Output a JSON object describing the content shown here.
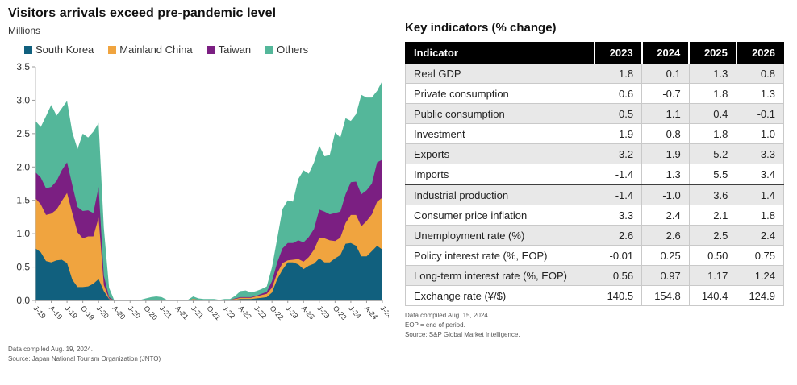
{
  "left_panel": {
    "title": "Visitors arrivals exceed pre-pandemic level",
    "subtitle": "Millions",
    "footnotes": [
      "Data compiled Aug. 19, 2024.",
      "Source: Japan National Tourism Organization (JNTO)"
    ]
  },
  "chart_data": {
    "type": "area",
    "stacked": true,
    "title": "Visitors arrivals exceed pre-pandemic level",
    "ylabel": "Millions",
    "x_start": "Jan-2019",
    "x_end": "Jul-2024",
    "x_frequency": "monthly",
    "tick_every": 3,
    "x_tick_labels": [
      "J-19",
      "A-19",
      "J-19",
      "O-19",
      "J-20",
      "A-20",
      "J-20",
      "O-20",
      "J-21",
      "A-21",
      "J-21",
      "O-21",
      "J-22",
      "A-22",
      "J-22",
      "O-22",
      "J-23",
      "A-23",
      "J-23",
      "O-23",
      "J-24",
      "A-24",
      "J-24"
    ],
    "ylim": [
      0,
      3.5
    ],
    "yticks": [
      0,
      0.5,
      1.0,
      1.5,
      2.0,
      2.5,
      3.0,
      3.5
    ],
    "grid": false,
    "legend_position": "top",
    "series": [
      {
        "name": "South Korea",
        "color": "#11607e",
        "values": [
          0.78,
          0.72,
          0.59,
          0.57,
          0.6,
          0.61,
          0.56,
          0.31,
          0.2,
          0.2,
          0.21,
          0.25,
          0.32,
          0.14,
          0.02,
          0.0,
          0.0,
          0.0,
          0.0,
          0.0,
          0.0,
          0.0,
          0.0,
          0.0,
          0.0,
          0.0,
          0.0,
          0.0,
          0.0,
          0.0,
          0.01,
          0.0,
          0.0,
          0.0,
          0.0,
          0.0,
          0.01,
          0.01,
          0.01,
          0.02,
          0.02,
          0.02,
          0.03,
          0.04,
          0.05,
          0.12,
          0.32,
          0.46,
          0.57,
          0.57,
          0.54,
          0.47,
          0.52,
          0.55,
          0.63,
          0.57,
          0.57,
          0.63,
          0.68,
          0.85,
          0.86,
          0.82,
          0.66,
          0.66,
          0.74,
          0.82,
          0.76
        ]
      },
      {
        "name": "Mainland China",
        "color": "#f0a43f",
        "values": [
          0.75,
          0.72,
          0.69,
          0.73,
          0.76,
          0.88,
          1.05,
          1.0,
          0.82,
          0.73,
          0.75,
          0.71,
          0.92,
          0.09,
          0.01,
          0.0,
          0.0,
          0.0,
          0.0,
          0.0,
          0.0,
          0.01,
          0.01,
          0.01,
          0.01,
          0.0,
          0.0,
          0.0,
          0.0,
          0.0,
          0.01,
          0.01,
          0.0,
          0.0,
          0.0,
          0.0,
          0.0,
          0.0,
          0.01,
          0.02,
          0.02,
          0.02,
          0.03,
          0.04,
          0.05,
          0.07,
          0.09,
          0.1,
          0.03,
          0.04,
          0.08,
          0.11,
          0.13,
          0.21,
          0.31,
          0.36,
          0.33,
          0.26,
          0.26,
          0.31,
          0.42,
          0.46,
          0.45,
          0.53,
          0.55,
          0.66,
          0.78
        ]
      },
      {
        "name": "Taiwan",
        "color": "#7b1f82",
        "values": [
          0.39,
          0.4,
          0.4,
          0.4,
          0.43,
          0.46,
          0.46,
          0.42,
          0.38,
          0.41,
          0.39,
          0.35,
          0.46,
          0.14,
          0.02,
          0.0,
          0.0,
          0.0,
          0.0,
          0.0,
          0.0,
          0.0,
          0.0,
          0.0,
          0.0,
          0.0,
          0.0,
          0.0,
          0.0,
          0.0,
          0.0,
          0.0,
          0.0,
          0.0,
          0.0,
          0.0,
          0.0,
          0.0,
          0.01,
          0.01,
          0.01,
          0.01,
          0.01,
          0.02,
          0.03,
          0.1,
          0.16,
          0.22,
          0.26,
          0.25,
          0.28,
          0.29,
          0.3,
          0.31,
          0.42,
          0.4,
          0.39,
          0.42,
          0.39,
          0.43,
          0.49,
          0.5,
          0.48,
          0.46,
          0.46,
          0.59,
          0.57
        ]
      },
      {
        "name": "Others",
        "color": "#54b79a",
        "values": [
          0.77,
          0.76,
          1.08,
          1.23,
          0.98,
          0.93,
          0.92,
          0.79,
          0.87,
          1.16,
          1.09,
          1.22,
          0.96,
          0.72,
          0.14,
          0.0,
          0.0,
          0.0,
          0.0,
          0.01,
          0.01,
          0.02,
          0.04,
          0.05,
          0.04,
          0.01,
          0.01,
          0.01,
          0.01,
          0.01,
          0.04,
          0.02,
          0.02,
          0.02,
          0.02,
          0.01,
          0.01,
          0.01,
          0.04,
          0.09,
          0.1,
          0.07,
          0.07,
          0.07,
          0.08,
          0.21,
          0.36,
          0.59,
          0.64,
          0.62,
          0.92,
          1.08,
          0.95,
          1.0,
          0.96,
          0.83,
          0.89,
          1.21,
          1.11,
          1.14,
          0.92,
          1.01,
          1.49,
          1.39,
          1.29,
          1.07,
          1.18
        ]
      }
    ]
  },
  "table": {
    "heading": "Key indicators (% change)",
    "columns": [
      "Indicator",
      "2023",
      "2024",
      "2025",
      "2026"
    ],
    "rows": [
      {
        "label": "Real GDP",
        "values": [
          "1.8",
          "0.1",
          "1.3",
          "0.8"
        ]
      },
      {
        "label": "Private consumption",
        "values": [
          "0.6",
          "-0.7",
          "1.8",
          "1.3"
        ]
      },
      {
        "label": "Public consumption",
        "values": [
          "0.5",
          "1.1",
          "0.4",
          "-0.1"
        ]
      },
      {
        "label": "Investment",
        "values": [
          "1.9",
          "0.8",
          "1.8",
          "1.0"
        ]
      },
      {
        "label": "Exports",
        "values": [
          "3.2",
          "1.9",
          "5.2",
          "3.3"
        ]
      },
      {
        "label": "Imports",
        "values": [
          "-1.4",
          "1.3",
          "5.5",
          "3.4"
        ]
      },
      {
        "label": "Industrial production",
        "values": [
          "-1.4",
          "-1.0",
          "3.6",
          "1.4"
        ],
        "section_break": true
      },
      {
        "label": "Consumer price inflation",
        "values": [
          "3.3",
          "2.4",
          "2.1",
          "1.8"
        ]
      },
      {
        "label": "Unemployment rate (%)",
        "values": [
          "2.6",
          "2.6",
          "2.5",
          "2.4"
        ]
      },
      {
        "label": "Policy interest rate (%, EOP)",
        "values": [
          "-0.01",
          "0.25",
          "0.50",
          "0.75"
        ]
      },
      {
        "label": "Long-term interest rate (%, EOP)",
        "values": [
          "0.56",
          "0.97",
          "1.17",
          "1.24"
        ]
      },
      {
        "label": "Exchange rate (¥/$)",
        "values": [
          "140.5",
          "154.8",
          "140.4",
          "124.9"
        ]
      }
    ],
    "footnotes": [
      "Data compiled Aug. 15, 2024.",
      "EOP = end of period.",
      "Source: S&P Global Market Intelligence."
    ]
  },
  "colors": {
    "south_korea": "#11607e",
    "mainland_china": "#f0a43f",
    "taiwan": "#7b1f82",
    "others": "#54b79a",
    "table_header_bg": "#000000",
    "table_row_alt": "#e8e8e8"
  }
}
